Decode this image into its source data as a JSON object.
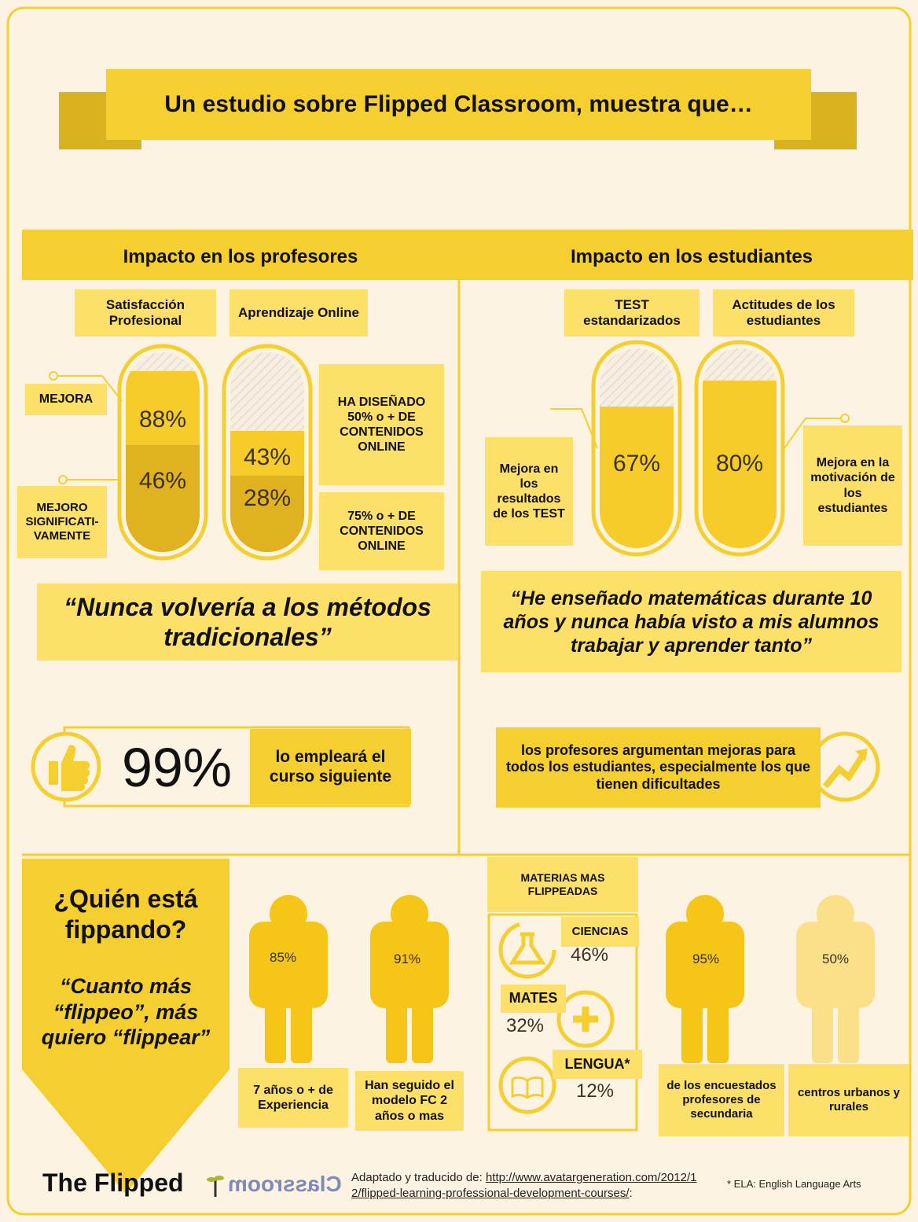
{
  "header": {
    "title": "Un estudio sobre Flipped Classroom, muestra que…"
  },
  "teachers": {
    "heading": "Impacto en los profesores",
    "gauges": [
      {
        "label": "Satisfacción Profesional",
        "values": [
          "88%",
          "46%"
        ]
      },
      {
        "label": "Aprendizaje Online",
        "values": [
          "43%",
          "28%"
        ]
      }
    ],
    "callouts": [
      "MEJORA",
      "MEJORO SIGNIFICATI-VAMENTE",
      "HA DISEÑADO 50% o + DE CONTENIDOS ONLINE",
      "75% o + DE CONTENIDOS ONLINE"
    ],
    "quote": "“Nunca volvería a los métodos tradicionales”",
    "stat": {
      "value": "99%",
      "text": "lo empleará el curso siguiente"
    }
  },
  "students": {
    "heading": "Impacto en los estudiantes",
    "gauges": [
      {
        "label": "TEST estandarizados",
        "value": "67%"
      },
      {
        "label": "Actitudes de los estudiantes",
        "value": "80%"
      }
    ],
    "callouts": [
      "Mejora en los resultados de los TEST",
      "Mejora en la motivación de los estudiantes"
    ],
    "quote": "“He enseñado matemáticas durante 10 años y nunca había visto a mis alumnos trabajar y aprender tanto”",
    "stat_text": "los profesores argumentan mejoras para todos los estudiantes, especialmente los que tienen dificultades"
  },
  "who": {
    "title": "¿Quién está fippando?",
    "quote": "“Cuanto más “flippeo”, más quiero “flippear”",
    "figures": [
      {
        "value": "85%",
        "caption": "7 años o + de Experiencia"
      },
      {
        "value": "91%",
        "caption": "Han seguido el modelo FC 2 años o mas"
      },
      {
        "value": "95%",
        "caption": "de los encuestados profesores de secundaria"
      },
      {
        "value": "50%",
        "caption": "centros urbanos y rurales"
      }
    ],
    "subjects": {
      "title": "MATERIAS MAS FLIPPEADAS",
      "items": [
        {
          "name": "CIENCIAS",
          "value": "46%"
        },
        {
          "name": "MATES",
          "value": "32%"
        },
        {
          "name": "LENGUA*",
          "value": "12%"
        }
      ]
    }
  },
  "footer": {
    "logo_left": "The Flipped",
    "logo_right": "Classroom",
    "source_prefix": "Adaptado y traducido de:",
    "source_url": "http://www.avatargeneration.com/2012/12/flipped-learning-professional-development-courses/",
    "source_suffix": ":",
    "note": "* ELA: English Language Arts"
  }
}
